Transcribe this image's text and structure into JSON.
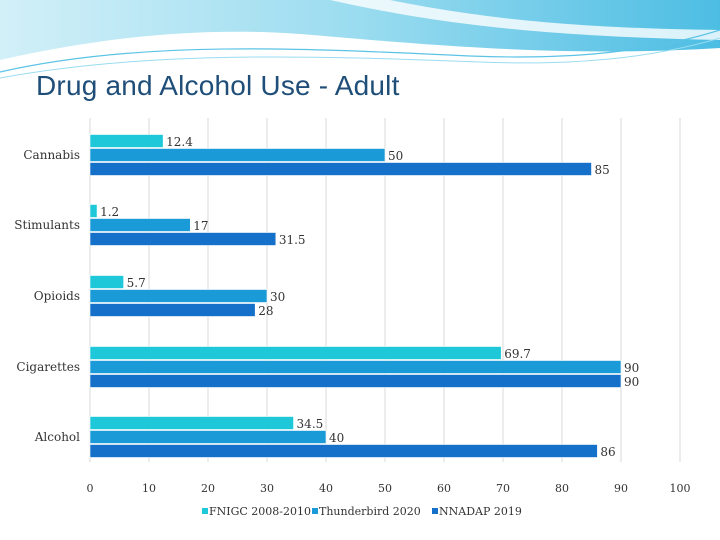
{
  "slide": {
    "title": "Drug and Alcohol Use - Adult"
  },
  "colors": {
    "accent_light": "#7fd3e6",
    "accent_mid": "#39a9dc",
    "title": "#1f4e79"
  },
  "chart_data": {
    "type": "bar",
    "orientation": "horizontal",
    "categories": [
      "Cannabis",
      "Stimulants",
      "Opioids",
      "Cigarettes",
      "Alcohol"
    ],
    "series": [
      {
        "name": "FNIGC 2008-2010",
        "color": "#1ec8d8",
        "values": [
          12.4,
          1.2,
          5.7,
          69.7,
          34.5
        ]
      },
      {
        "name": "Thunderbird 2020",
        "color": "#1a9ad6",
        "values": [
          50,
          17,
          30,
          90,
          40
        ]
      },
      {
        "name": "NNADAP 2019",
        "color": "#1470c8",
        "values": [
          85,
          31.5,
          28,
          90,
          86
        ]
      }
    ],
    "data_labels": [
      [
        "12.4",
        "1.2",
        "5.7",
        "69.7",
        "34.5"
      ],
      [
        "50",
        "17",
        "30",
        "90",
        "40"
      ],
      [
        "85",
        "31.5",
        "28",
        "90",
        "86"
      ]
    ],
    "xlim": [
      0,
      100
    ],
    "xticks": [
      0,
      10,
      20,
      30,
      40,
      50,
      60,
      70,
      80,
      90,
      100
    ],
    "xtick_labels": [
      "0",
      "10",
      "20",
      "30",
      "40",
      "50",
      "60",
      "70",
      "80",
      "90",
      "100"
    ],
    "grid": "vertical",
    "legend_position": "bottom"
  }
}
